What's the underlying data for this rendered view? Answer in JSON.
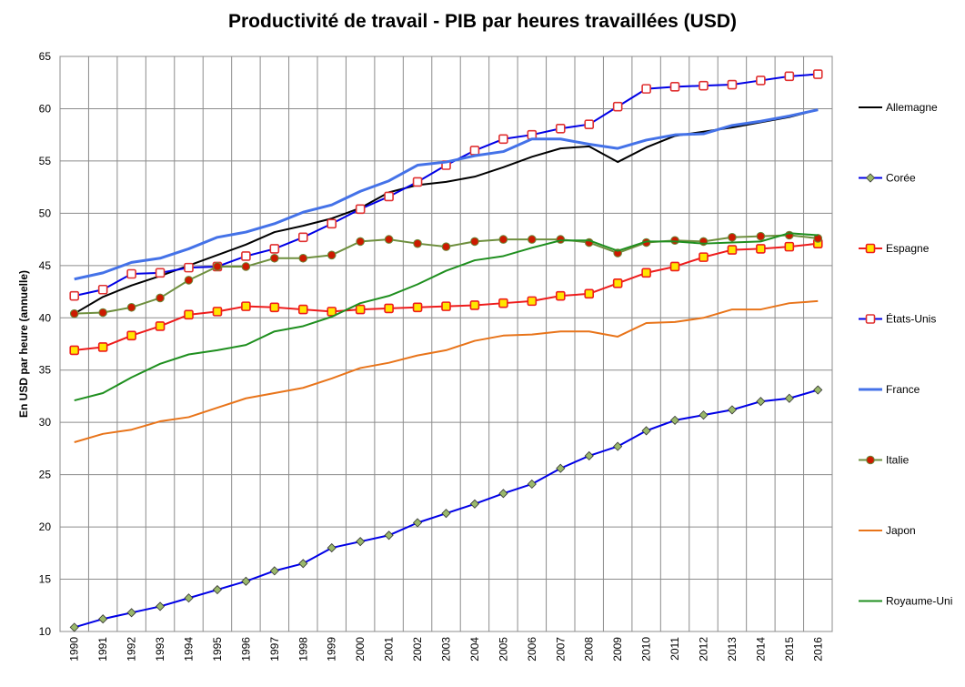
{
  "chart_data": {
    "type": "line",
    "title": "Productivité de travail - PIB par heures travaillées (USD)",
    "xlabel": "",
    "ylabel": "En USD par heure (annuelle)",
    "ylim": [
      10,
      65
    ],
    "yticks": [
      10,
      15,
      20,
      25,
      30,
      35,
      40,
      45,
      50,
      55,
      60,
      65
    ],
    "grid": true,
    "legend_position": "right",
    "categories": [
      "1990",
      "1991",
      "1992",
      "1993",
      "1994",
      "1995",
      "1996",
      "1997",
      "1998",
      "1999",
      "2000",
      "2001",
      "2002",
      "2003",
      "2004",
      "2005",
      "2006",
      "2007",
      "2008",
      "2009",
      "2010",
      "2011",
      "2012",
      "2013",
      "2014",
      "2015",
      "2016"
    ],
    "series": [
      {
        "name": "Allemagne",
        "color": "#000000",
        "marker": "none",
        "values": [
          40.4,
          42.0,
          43.1,
          44.0,
          45.0,
          46.0,
          47.0,
          48.2,
          48.8,
          49.5,
          50.5,
          52.0,
          52.7,
          53.0,
          53.5,
          54.4,
          55.4,
          56.2,
          56.4,
          54.9,
          56.3,
          57.4,
          57.8,
          58.2,
          58.7,
          59.2,
          59.9
        ]
      },
      {
        "name": "Corée",
        "color": "#0000e6",
        "marker": "diamond",
        "marker_fill": "#9ab86b",
        "values": [
          10.4,
          11.2,
          11.8,
          12.4,
          13.2,
          14.0,
          14.8,
          15.8,
          16.5,
          18.0,
          18.6,
          19.2,
          20.4,
          21.3,
          22.2,
          23.2,
          24.1,
          25.6,
          26.8,
          27.7,
          29.2,
          30.2,
          30.7,
          31.2,
          32.0,
          32.3,
          33.1
        ]
      },
      {
        "name": "Espagne",
        "color": "#ee1c1c",
        "marker": "square",
        "marker_fill": "#ffe600",
        "values": [
          36.9,
          37.2,
          38.3,
          39.2,
          40.3,
          40.6,
          41.1,
          41.0,
          40.8,
          40.6,
          40.8,
          40.9,
          41.0,
          41.1,
          41.2,
          41.4,
          41.6,
          42.1,
          42.3,
          43.3,
          44.3,
          44.9,
          45.8,
          46.5,
          46.6,
          46.8,
          47.1
        ]
      },
      {
        "name": "États-Unis",
        "color": "#0000e6",
        "marker": "square",
        "marker_fill": "#ffffff",
        "marker_stroke": "#e03030",
        "values": [
          42.1,
          42.7,
          44.2,
          44.3,
          44.8,
          44.9,
          45.9,
          46.6,
          47.7,
          49.0,
          50.4,
          51.6,
          53.0,
          54.6,
          56.0,
          57.1,
          57.5,
          58.1,
          58.5,
          60.2,
          61.9,
          62.1,
          62.2,
          62.3,
          62.7,
          63.1,
          63.3
        ]
      },
      {
        "name": "France",
        "color": "#4472e8",
        "marker": "none",
        "values": [
          43.7,
          44.3,
          45.3,
          45.7,
          46.6,
          47.7,
          48.2,
          49.0,
          50.1,
          50.8,
          52.1,
          53.1,
          54.6,
          54.9,
          55.5,
          55.9,
          57.1,
          57.1,
          56.6,
          56.2,
          57.0,
          57.5,
          57.6,
          58.4,
          58.8,
          59.3,
          59.9
        ]
      },
      {
        "name": "Italie",
        "color": "#6e8f3e",
        "marker": "circle",
        "marker_fill": "#cc1a00",
        "values": [
          40.4,
          40.5,
          41.0,
          41.9,
          43.6,
          44.9,
          44.9,
          45.7,
          45.7,
          46.0,
          47.3,
          47.5,
          47.1,
          46.8,
          47.3,
          47.5,
          47.5,
          47.5,
          47.2,
          46.2,
          47.2,
          47.4,
          47.3,
          47.7,
          47.8,
          47.9,
          47.6
        ]
      },
      {
        "name": "Japon",
        "color": "#e8741a",
        "marker": "none",
        "values": [
          28.1,
          28.9,
          29.3,
          30.1,
          30.5,
          31.4,
          32.3,
          32.8,
          33.3,
          34.2,
          35.2,
          35.7,
          36.4,
          36.9,
          37.8,
          38.3,
          38.4,
          38.7,
          38.7,
          38.2,
          39.5,
          39.6,
          40.0,
          40.8,
          40.8,
          41.4,
          41.6
        ]
      },
      {
        "name": "Royaume-Uni",
        "color": "#1f8f1f",
        "marker": "none",
        "values": [
          32.1,
          32.8,
          34.3,
          35.6,
          36.5,
          36.9,
          37.4,
          38.7,
          39.2,
          40.1,
          41.4,
          42.1,
          43.2,
          44.5,
          45.5,
          45.9,
          46.7,
          47.4,
          47.4,
          46.4,
          47.3,
          47.3,
          47.1,
          47.2,
          47.3,
          48.1,
          47.9
        ]
      }
    ]
  }
}
